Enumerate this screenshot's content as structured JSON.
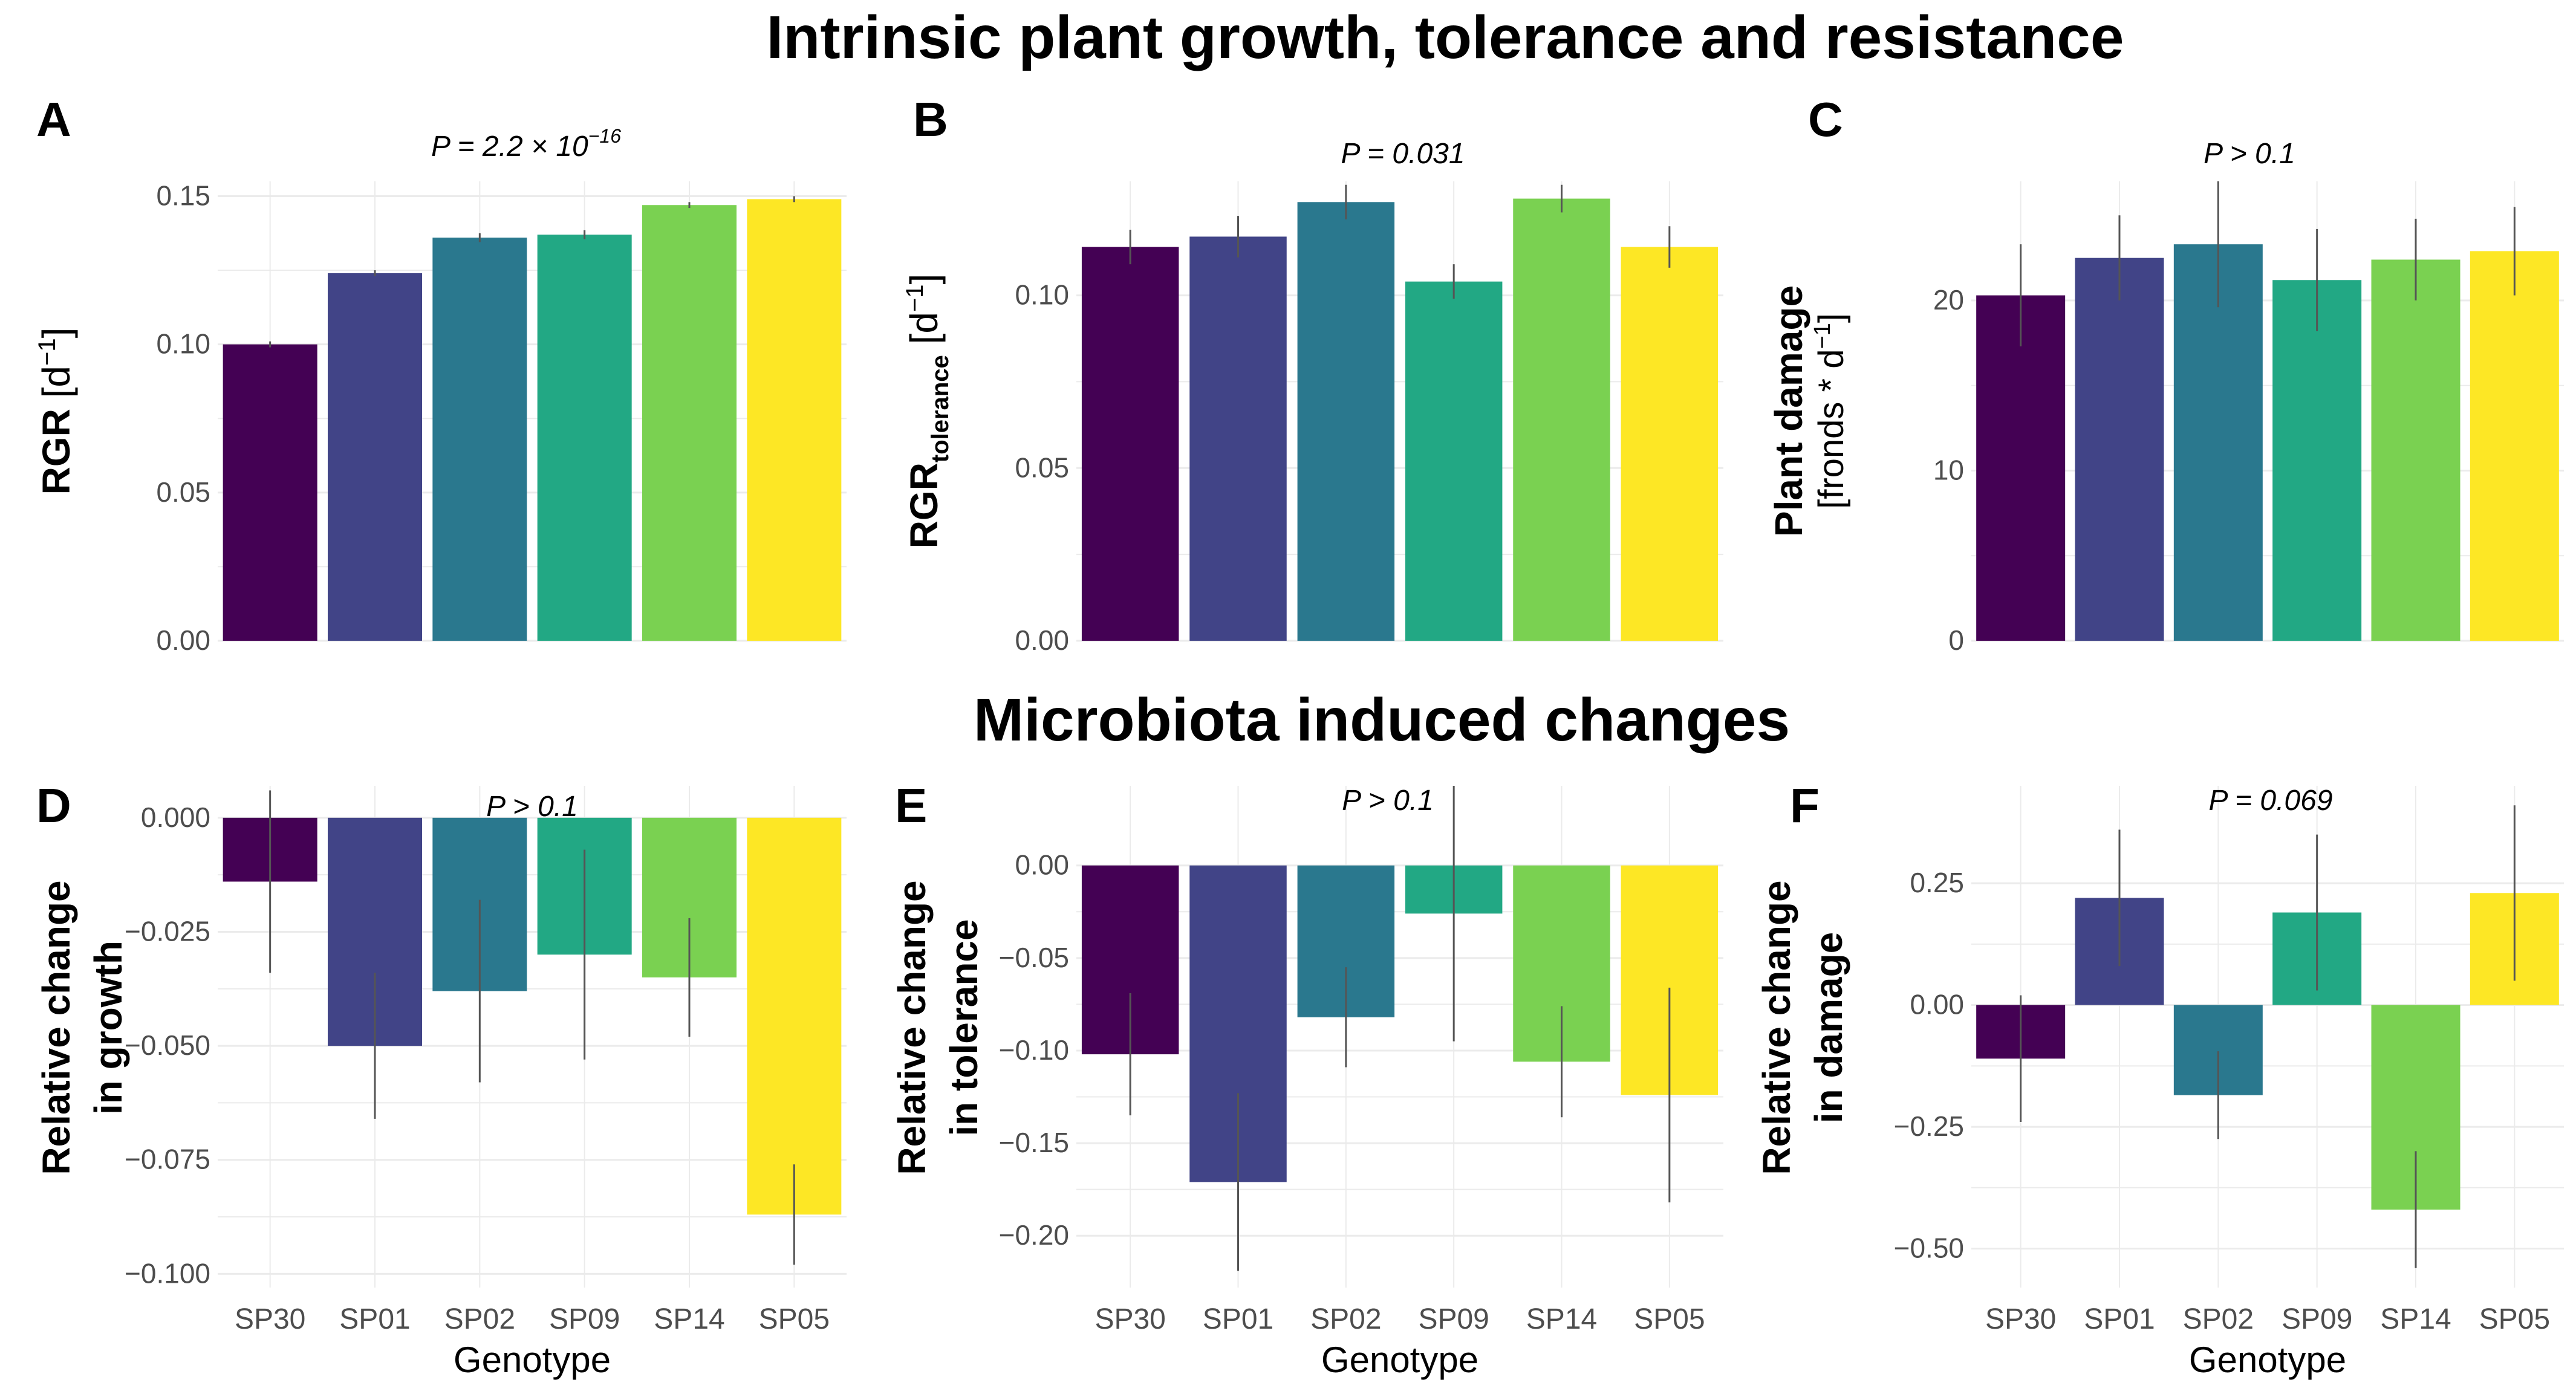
{
  "titles": {
    "top": "Intrinsic plant growth, tolerance and resistance",
    "middle": "Microbiota induced changes"
  },
  "colors": {
    "SP30": "#440154",
    "SP01": "#414487",
    "SP02": "#2a788e",
    "SP09": "#22a884",
    "SP14": "#7ad151",
    "SP05": "#fde725",
    "grid": "#ebebeb",
    "errorbar": "#555555"
  },
  "chart_data": [
    {
      "panel": "A",
      "type": "bar",
      "title": "P = 2.2 × 10",
      "title_sup": "−16",
      "ylabel_main": "RGR",
      "ylabel_unit": "[d",
      "categories": [
        "SP30",
        "SP01",
        "SP02",
        "SP09",
        "SP14",
        "SP05"
      ],
      "values": [
        0.1,
        0.124,
        0.136,
        0.137,
        0.147,
        0.149
      ],
      "errors": [
        0.001,
        0.001,
        0.0015,
        0.0015,
        0.001,
        0.001
      ],
      "ylim": [
        0,
        0.155
      ],
      "yticks": [
        0,
        0.05,
        0.1,
        0.15
      ],
      "ytick_labels": [
        "0.00",
        "0.05",
        "0.10",
        "0.15"
      ],
      "xlabel": ""
    },
    {
      "panel": "B",
      "type": "bar",
      "title": "P = 0.031",
      "ylabel_main": "RGR",
      "ylabel_sub": "tolerance",
      "ylabel_unit": "[d",
      "categories": [
        "SP30",
        "SP01",
        "SP02",
        "SP09",
        "SP14",
        "SP05"
      ],
      "values": [
        0.114,
        0.117,
        0.127,
        0.104,
        0.128,
        0.114
      ],
      "errors": [
        0.005,
        0.006,
        0.005,
        0.005,
        0.004,
        0.006
      ],
      "ylim": [
        0,
        0.133
      ],
      "yticks": [
        0,
        0.05,
        0.1
      ],
      "ytick_labels": [
        "0.00",
        "0.05",
        "0.10"
      ],
      "xlabel": ""
    },
    {
      "panel": "C",
      "type": "bar",
      "title": "P > 0.1",
      "ylabel_main": "Plant damage",
      "ylabel_unit": "[fronds * d",
      "categories": [
        "SP30",
        "SP01",
        "SP02",
        "SP09",
        "SP14",
        "SP05"
      ],
      "values": [
        20.3,
        22.5,
        23.3,
        21.2,
        22.4,
        22.9
      ],
      "errors": [
        3.0,
        2.5,
        3.7,
        3.0,
        2.4,
        2.6
      ],
      "ylim": [
        0,
        27
      ],
      "yticks": [
        0,
        10,
        20
      ],
      "ytick_labels": [
        "0",
        "10",
        "20"
      ],
      "xlabel": ""
    },
    {
      "panel": "D",
      "type": "bar",
      "title": "P > 0.1",
      "ylabel_line1": "Relative change",
      "ylabel_line2": "in growth",
      "categories": [
        "SP30",
        "SP01",
        "SP02",
        "SP09",
        "SP14",
        "SP05"
      ],
      "values": [
        -0.014,
        -0.05,
        -0.038,
        -0.03,
        -0.035,
        -0.087
      ],
      "errors": [
        0.02,
        0.016,
        0.02,
        0.023,
        0.013,
        0.011
      ],
      "ylim": [
        -0.103,
        0.007
      ],
      "yticks": [
        -0.1,
        -0.075,
        -0.05,
        -0.025,
        0
      ],
      "ytick_labels": [
        "−0.100",
        "−0.075",
        "−0.050",
        "−0.025",
        "0.000"
      ],
      "xlabel": "Genotype"
    },
    {
      "panel": "E",
      "type": "bar",
      "title": "P > 0.1",
      "ylabel_line1": "Relative change",
      "ylabel_line2": "in tolerance",
      "categories": [
        "SP30",
        "SP01",
        "SP02",
        "SP09",
        "SP14",
        "SP05"
      ],
      "values": [
        -0.102,
        -0.171,
        -0.082,
        -0.026,
        -0.106,
        -0.124
      ],
      "errors": [
        0.033,
        0.048,
        0.027,
        0.069,
        0.03,
        0.058
      ],
      "ylim": [
        -0.228,
        0.043
      ],
      "yticks": [
        -0.2,
        -0.15,
        -0.1,
        -0.05,
        0
      ],
      "ytick_labels": [
        "−0.20",
        "−0.15",
        "−0.10",
        "−0.05",
        "0.00"
      ],
      "xlabel": "Genotype"
    },
    {
      "panel": "F",
      "type": "bar",
      "title": "P = 0.069",
      "ylabel_line1": "Relative change",
      "ylabel_line2": "in damage",
      "categories": [
        "SP30",
        "SP01",
        "SP02",
        "SP09",
        "SP14",
        "SP05"
      ],
      "values": [
        -0.11,
        0.22,
        -0.185,
        0.19,
        -0.42,
        0.23
      ],
      "errors": [
        0.13,
        0.14,
        0.09,
        0.16,
        0.12,
        0.18
      ],
      "ylim": [
        -0.58,
        0.45
      ],
      "yticks": [
        -0.5,
        -0.25,
        0,
        0.25
      ],
      "ytick_labels": [
        "−0.50",
        "−0.25",
        "0.00",
        "0.25"
      ],
      "xlabel": "Genotype"
    }
  ]
}
